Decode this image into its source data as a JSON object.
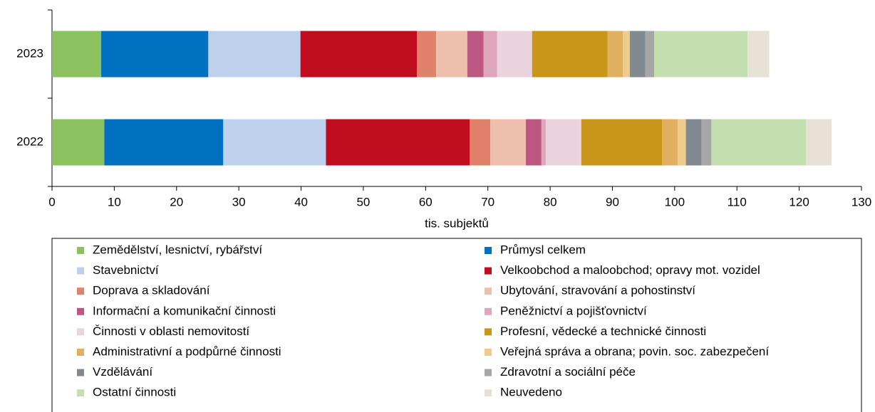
{
  "chart_data": {
    "type": "stacked-horizontal-bar",
    "categories": [
      "2023",
      "2022"
    ],
    "x_label": "tis. subjektů",
    "xlim": [
      0,
      130
    ],
    "xticks": [
      0,
      10,
      20,
      30,
      40,
      50,
      60,
      70,
      80,
      90,
      100,
      110,
      120,
      130
    ],
    "series": [
      {
        "name": "Zemědělství, lesnictví, rybářství",
        "color": "#8bc25f",
        "values": [
          7.9,
          8.4
        ]
      },
      {
        "name": "Průmysl celkem",
        "color": "#0070c0",
        "values": [
          17.2,
          19.1
        ]
      },
      {
        "name": "Stavebnictví",
        "color": "#bdd0ec",
        "values": [
          14.8,
          16.5
        ]
      },
      {
        "name": "Velkoobchod a maloobchod; opravy mot. vozidel",
        "color": "#c00d1e",
        "values": [
          18.7,
          23.1
        ]
      },
      {
        "name": "Doprava a skladování",
        "color": "#e0826b",
        "values": [
          3.1,
          3.3
        ]
      },
      {
        "name": "Ubytování, stravování a pohostinství",
        "color": "#eebfad",
        "values": [
          5.0,
          5.7
        ]
      },
      {
        "name": "Informační a komunikační činnosti",
        "color": "#bc5781",
        "values": [
          2.6,
          2.5
        ]
      },
      {
        "name": "Peněžnictví a pojišťovnictví",
        "color": "#dda6bb",
        "values": [
          2.2,
          0.7
        ]
      },
      {
        "name": "Činnosti v oblasti nemovitostí",
        "color": "#ead3dc",
        "values": [
          5.6,
          5.7
        ]
      },
      {
        "name": "Profesní, vědecké a technické činnosti",
        "color": "#c9961a",
        "values": [
          12.1,
          13.0
        ]
      },
      {
        "name": "Administrativní a podpůrné činnosti",
        "color": "#e0b060",
        "values": [
          2.5,
          2.5
        ]
      },
      {
        "name": "Veřejná správa a obrana; povin. soc. zabezpečení",
        "color": "#eecb8a",
        "values": [
          1.1,
          1.3
        ]
      },
      {
        "name": "Vzdělávání",
        "color": "#808890",
        "values": [
          2.5,
          2.5
        ]
      },
      {
        "name": "Zdravotní a sociální péče",
        "color": "#a6a6a6",
        "values": [
          1.4,
          1.6
        ]
      },
      {
        "name": "Ostatní činnosti",
        "color": "#c3dfb0",
        "values": [
          15.0,
          15.2
        ]
      },
      {
        "name": "Neuvedeno",
        "color": "#e6e1d4",
        "values": [
          3.5,
          4.1
        ]
      }
    ]
  }
}
